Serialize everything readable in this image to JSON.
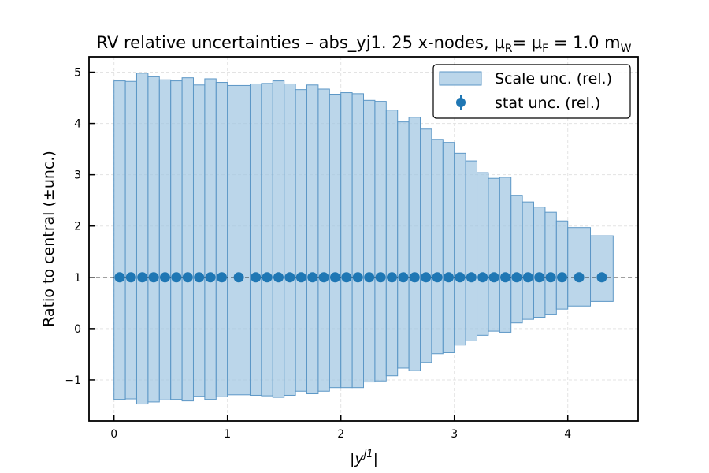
{
  "chart_data": {
    "type": "bar",
    "title": "RV relative uncertainties  –  abs_yj1. 25 x-nodes, μR= μF = 1.0 mW",
    "title_parts": {
      "main": "RV relative uncertainties  –  abs_yj1. 25 x-nodes, μ",
      "sub_r": "R",
      "mid": "= μ",
      "sub_f": "F",
      "tail": " = 1.0 m",
      "sub_w": "W"
    },
    "xlabel": "|y^j1|",
    "xlabel_parts": {
      "base": "|y",
      "sup": "j1",
      "end": "|"
    },
    "ylabel": "Ratio to central (±unc.)",
    "xlim": [
      -0.22,
      4.62
    ],
    "ylim": [
      -1.8,
      5.3
    ],
    "x_ticks": [
      0,
      1,
      2,
      3,
      4
    ],
    "y_ticks": [
      -1,
      0,
      1,
      2,
      3,
      4,
      5
    ],
    "y_tick_labels": [
      "−1",
      "0",
      "1",
      "2",
      "3",
      "4",
      "5"
    ],
    "grid": true,
    "reference_line": 1.0,
    "legend": {
      "placement": "top-right",
      "scale_label": "Scale unc. (rel.)",
      "stat_label": "stat unc. (rel.)"
    },
    "colors": {
      "fill": "#9ec4e1",
      "edge": "#5c97c6",
      "marker": "#1f77b4"
    },
    "bins": [
      {
        "x0": 0.0,
        "x1": 0.1,
        "lo": -1.38,
        "hi": 4.83
      },
      {
        "x0": 0.1,
        "x1": 0.2,
        "lo": -1.37,
        "hi": 4.82
      },
      {
        "x0": 0.2,
        "x1": 0.3,
        "lo": -1.47,
        "hi": 4.98
      },
      {
        "x0": 0.3,
        "x1": 0.4,
        "lo": -1.43,
        "hi": 4.91
      },
      {
        "x0": 0.4,
        "x1": 0.5,
        "lo": -1.39,
        "hi": 4.85
      },
      {
        "x0": 0.5,
        "x1": 0.6,
        "lo": -1.38,
        "hi": 4.83
      },
      {
        "x0": 0.6,
        "x1": 0.7,
        "lo": -1.41,
        "hi": 4.89
      },
      {
        "x0": 0.7,
        "x1": 0.8,
        "lo": -1.32,
        "hi": 4.75
      },
      {
        "x0": 0.8,
        "x1": 0.9,
        "lo": -1.38,
        "hi": 4.87
      },
      {
        "x0": 0.9,
        "x1": 1.0,
        "lo": -1.33,
        "hi": 4.8
      },
      {
        "x0": 1.0,
        "x1": 1.2,
        "lo": -1.29,
        "hi": 4.74
      },
      {
        "x0": 1.2,
        "x1": 1.3,
        "lo": -1.3,
        "hi": 4.77
      },
      {
        "x0": 1.3,
        "x1": 1.4,
        "lo": -1.31,
        "hi": 4.78
      },
      {
        "x0": 1.4,
        "x1": 1.5,
        "lo": -1.34,
        "hi": 4.83
      },
      {
        "x0": 1.5,
        "x1": 1.6,
        "lo": -1.3,
        "hi": 4.77
      },
      {
        "x0": 1.6,
        "x1": 1.7,
        "lo": -1.22,
        "hi": 4.66
      },
      {
        "x0": 1.7,
        "x1": 1.8,
        "lo": -1.27,
        "hi": 4.75
      },
      {
        "x0": 1.8,
        "x1": 1.9,
        "lo": -1.22,
        "hi": 4.67
      },
      {
        "x0": 1.9,
        "x1": 2.0,
        "lo": -1.15,
        "hi": 4.57
      },
      {
        "x0": 2.0,
        "x1": 2.1,
        "lo": -1.15,
        "hi": 4.6
      },
      {
        "x0": 2.1,
        "x1": 2.2,
        "lo": -1.15,
        "hi": 4.58
      },
      {
        "x0": 2.2,
        "x1": 2.3,
        "lo": -1.04,
        "hi": 4.45
      },
      {
        "x0": 2.3,
        "x1": 2.4,
        "lo": -1.02,
        "hi": 4.43
      },
      {
        "x0": 2.4,
        "x1": 2.5,
        "lo": -0.92,
        "hi": 4.26
      },
      {
        "x0": 2.5,
        "x1": 2.6,
        "lo": -0.77,
        "hi": 4.03
      },
      {
        "x0": 2.6,
        "x1": 2.7,
        "lo": -0.82,
        "hi": 4.12
      },
      {
        "x0": 2.7,
        "x1": 2.8,
        "lo": -0.66,
        "hi": 3.89
      },
      {
        "x0": 2.8,
        "x1": 2.9,
        "lo": -0.49,
        "hi": 3.69
      },
      {
        "x0": 2.9,
        "x1": 3.0,
        "lo": -0.47,
        "hi": 3.63
      },
      {
        "x0": 3.0,
        "x1": 3.1,
        "lo": -0.32,
        "hi": 3.42
      },
      {
        "x0": 3.1,
        "x1": 3.2,
        "lo": -0.24,
        "hi": 3.27
      },
      {
        "x0": 3.2,
        "x1": 3.3,
        "lo": -0.13,
        "hi": 3.04
      },
      {
        "x0": 3.3,
        "x1": 3.4,
        "lo": -0.05,
        "hi": 2.93
      },
      {
        "x0": 3.4,
        "x1": 3.5,
        "lo": -0.07,
        "hi": 2.95
      },
      {
        "x0": 3.5,
        "x1": 3.6,
        "lo": 0.11,
        "hi": 2.6
      },
      {
        "x0": 3.6,
        "x1": 3.7,
        "lo": 0.18,
        "hi": 2.47
      },
      {
        "x0": 3.7,
        "x1": 3.8,
        "lo": 0.22,
        "hi": 2.37
      },
      {
        "x0": 3.8,
        "x1": 3.9,
        "lo": 0.28,
        "hi": 2.27
      },
      {
        "x0": 3.9,
        "x1": 4.0,
        "lo": 0.38,
        "hi": 2.1
      },
      {
        "x0": 4.0,
        "x1": 4.2,
        "lo": 0.44,
        "hi": 1.97
      },
      {
        "x0": 4.2,
        "x1": 4.4,
        "lo": 0.53,
        "hi": 1.81
      }
    ],
    "stat_points": [
      {
        "x": 0.05,
        "y": 1.0
      },
      {
        "x": 0.15,
        "y": 1.0
      },
      {
        "x": 0.25,
        "y": 1.0
      },
      {
        "x": 0.35,
        "y": 1.0
      },
      {
        "x": 0.45,
        "y": 1.0
      },
      {
        "x": 0.55,
        "y": 1.0
      },
      {
        "x": 0.65,
        "y": 1.0
      },
      {
        "x": 0.75,
        "y": 1.0
      },
      {
        "x": 0.85,
        "y": 1.0
      },
      {
        "x": 0.95,
        "y": 1.0
      },
      {
        "x": 1.1,
        "y": 1.0
      },
      {
        "x": 1.25,
        "y": 1.0
      },
      {
        "x": 1.35,
        "y": 1.0
      },
      {
        "x": 1.45,
        "y": 1.0
      },
      {
        "x": 1.55,
        "y": 1.0
      },
      {
        "x": 1.65,
        "y": 1.0
      },
      {
        "x": 1.75,
        "y": 1.0
      },
      {
        "x": 1.85,
        "y": 1.0
      },
      {
        "x": 1.95,
        "y": 1.0
      },
      {
        "x": 2.05,
        "y": 1.0
      },
      {
        "x": 2.15,
        "y": 1.0
      },
      {
        "x": 2.25,
        "y": 1.0
      },
      {
        "x": 2.35,
        "y": 1.0
      },
      {
        "x": 2.45,
        "y": 1.0
      },
      {
        "x": 2.55,
        "y": 1.0
      },
      {
        "x": 2.65,
        "y": 1.0
      },
      {
        "x": 2.75,
        "y": 1.0
      },
      {
        "x": 2.85,
        "y": 1.0
      },
      {
        "x": 2.95,
        "y": 1.0
      },
      {
        "x": 3.05,
        "y": 1.0
      },
      {
        "x": 3.15,
        "y": 1.0
      },
      {
        "x": 3.25,
        "y": 1.0
      },
      {
        "x": 3.35,
        "y": 1.0
      },
      {
        "x": 3.45,
        "y": 1.0
      },
      {
        "x": 3.55,
        "y": 1.0
      },
      {
        "x": 3.65,
        "y": 1.0
      },
      {
        "x": 3.75,
        "y": 1.0
      },
      {
        "x": 3.85,
        "y": 1.0
      },
      {
        "x": 3.95,
        "y": 1.0
      },
      {
        "x": 4.1,
        "y": 1.0
      },
      {
        "x": 4.3,
        "y": 1.0
      }
    ]
  }
}
